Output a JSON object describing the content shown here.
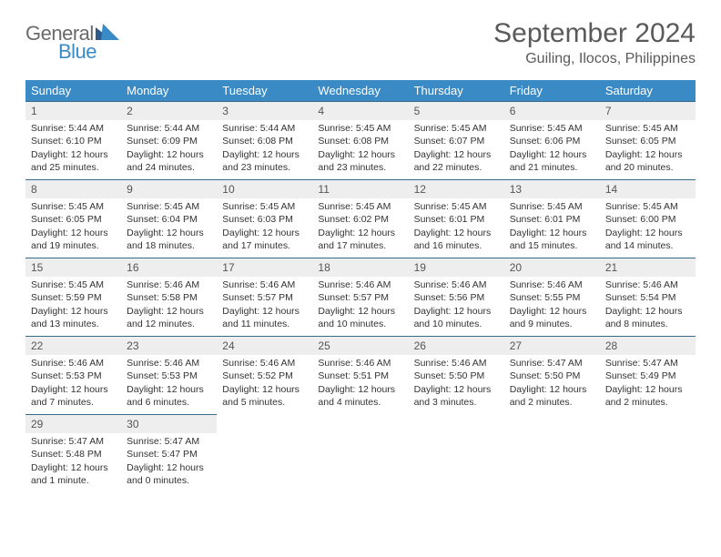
{
  "logo": {
    "general": "General",
    "blue": "Blue"
  },
  "header": {
    "month_title": "September 2024",
    "location": "Guiling, Ilocos, Philippines"
  },
  "theme": {
    "header_bg": "#3a8ac6",
    "header_fg": "#ffffff",
    "daynum_bg": "#eeeeee",
    "border": "#3a6a8a",
    "logo_gray": "#6a6a6a",
    "logo_blue": "#3a8ac6"
  },
  "day_names": [
    "Sunday",
    "Monday",
    "Tuesday",
    "Wednesday",
    "Thursday",
    "Friday",
    "Saturday"
  ],
  "weeks": [
    [
      {
        "n": "1",
        "sr": "Sunrise: 5:44 AM",
        "ss": "Sunset: 6:10 PM",
        "d1": "Daylight: 12 hours",
        "d2": "and 25 minutes."
      },
      {
        "n": "2",
        "sr": "Sunrise: 5:44 AM",
        "ss": "Sunset: 6:09 PM",
        "d1": "Daylight: 12 hours",
        "d2": "and 24 minutes."
      },
      {
        "n": "3",
        "sr": "Sunrise: 5:44 AM",
        "ss": "Sunset: 6:08 PM",
        "d1": "Daylight: 12 hours",
        "d2": "and 23 minutes."
      },
      {
        "n": "4",
        "sr": "Sunrise: 5:45 AM",
        "ss": "Sunset: 6:08 PM",
        "d1": "Daylight: 12 hours",
        "d2": "and 23 minutes."
      },
      {
        "n": "5",
        "sr": "Sunrise: 5:45 AM",
        "ss": "Sunset: 6:07 PM",
        "d1": "Daylight: 12 hours",
        "d2": "and 22 minutes."
      },
      {
        "n": "6",
        "sr": "Sunrise: 5:45 AM",
        "ss": "Sunset: 6:06 PM",
        "d1": "Daylight: 12 hours",
        "d2": "and 21 minutes."
      },
      {
        "n": "7",
        "sr": "Sunrise: 5:45 AM",
        "ss": "Sunset: 6:05 PM",
        "d1": "Daylight: 12 hours",
        "d2": "and 20 minutes."
      }
    ],
    [
      {
        "n": "8",
        "sr": "Sunrise: 5:45 AM",
        "ss": "Sunset: 6:05 PM",
        "d1": "Daylight: 12 hours",
        "d2": "and 19 minutes."
      },
      {
        "n": "9",
        "sr": "Sunrise: 5:45 AM",
        "ss": "Sunset: 6:04 PM",
        "d1": "Daylight: 12 hours",
        "d2": "and 18 minutes."
      },
      {
        "n": "10",
        "sr": "Sunrise: 5:45 AM",
        "ss": "Sunset: 6:03 PM",
        "d1": "Daylight: 12 hours",
        "d2": "and 17 minutes."
      },
      {
        "n": "11",
        "sr": "Sunrise: 5:45 AM",
        "ss": "Sunset: 6:02 PM",
        "d1": "Daylight: 12 hours",
        "d2": "and 17 minutes."
      },
      {
        "n": "12",
        "sr": "Sunrise: 5:45 AM",
        "ss": "Sunset: 6:01 PM",
        "d1": "Daylight: 12 hours",
        "d2": "and 16 minutes."
      },
      {
        "n": "13",
        "sr": "Sunrise: 5:45 AM",
        "ss": "Sunset: 6:01 PM",
        "d1": "Daylight: 12 hours",
        "d2": "and 15 minutes."
      },
      {
        "n": "14",
        "sr": "Sunrise: 5:45 AM",
        "ss": "Sunset: 6:00 PM",
        "d1": "Daylight: 12 hours",
        "d2": "and 14 minutes."
      }
    ],
    [
      {
        "n": "15",
        "sr": "Sunrise: 5:45 AM",
        "ss": "Sunset: 5:59 PM",
        "d1": "Daylight: 12 hours",
        "d2": "and 13 minutes."
      },
      {
        "n": "16",
        "sr": "Sunrise: 5:46 AM",
        "ss": "Sunset: 5:58 PM",
        "d1": "Daylight: 12 hours",
        "d2": "and 12 minutes."
      },
      {
        "n": "17",
        "sr": "Sunrise: 5:46 AM",
        "ss": "Sunset: 5:57 PM",
        "d1": "Daylight: 12 hours",
        "d2": "and 11 minutes."
      },
      {
        "n": "18",
        "sr": "Sunrise: 5:46 AM",
        "ss": "Sunset: 5:57 PM",
        "d1": "Daylight: 12 hours",
        "d2": "and 10 minutes."
      },
      {
        "n": "19",
        "sr": "Sunrise: 5:46 AM",
        "ss": "Sunset: 5:56 PM",
        "d1": "Daylight: 12 hours",
        "d2": "and 10 minutes."
      },
      {
        "n": "20",
        "sr": "Sunrise: 5:46 AM",
        "ss": "Sunset: 5:55 PM",
        "d1": "Daylight: 12 hours",
        "d2": "and 9 minutes."
      },
      {
        "n": "21",
        "sr": "Sunrise: 5:46 AM",
        "ss": "Sunset: 5:54 PM",
        "d1": "Daylight: 12 hours",
        "d2": "and 8 minutes."
      }
    ],
    [
      {
        "n": "22",
        "sr": "Sunrise: 5:46 AM",
        "ss": "Sunset: 5:53 PM",
        "d1": "Daylight: 12 hours",
        "d2": "and 7 minutes."
      },
      {
        "n": "23",
        "sr": "Sunrise: 5:46 AM",
        "ss": "Sunset: 5:53 PM",
        "d1": "Daylight: 12 hours",
        "d2": "and 6 minutes."
      },
      {
        "n": "24",
        "sr": "Sunrise: 5:46 AM",
        "ss": "Sunset: 5:52 PM",
        "d1": "Daylight: 12 hours",
        "d2": "and 5 minutes."
      },
      {
        "n": "25",
        "sr": "Sunrise: 5:46 AM",
        "ss": "Sunset: 5:51 PM",
        "d1": "Daylight: 12 hours",
        "d2": "and 4 minutes."
      },
      {
        "n": "26",
        "sr": "Sunrise: 5:46 AM",
        "ss": "Sunset: 5:50 PM",
        "d1": "Daylight: 12 hours",
        "d2": "and 3 minutes."
      },
      {
        "n": "27",
        "sr": "Sunrise: 5:47 AM",
        "ss": "Sunset: 5:50 PM",
        "d1": "Daylight: 12 hours",
        "d2": "and 2 minutes."
      },
      {
        "n": "28",
        "sr": "Sunrise: 5:47 AM",
        "ss": "Sunset: 5:49 PM",
        "d1": "Daylight: 12 hours",
        "d2": "and 2 minutes."
      }
    ],
    [
      {
        "n": "29",
        "sr": "Sunrise: 5:47 AM",
        "ss": "Sunset: 5:48 PM",
        "d1": "Daylight: 12 hours",
        "d2": "and 1 minute."
      },
      {
        "n": "30",
        "sr": "Sunrise: 5:47 AM",
        "ss": "Sunset: 5:47 PM",
        "d1": "Daylight: 12 hours",
        "d2": "and 0 minutes."
      },
      null,
      null,
      null,
      null,
      null
    ]
  ]
}
